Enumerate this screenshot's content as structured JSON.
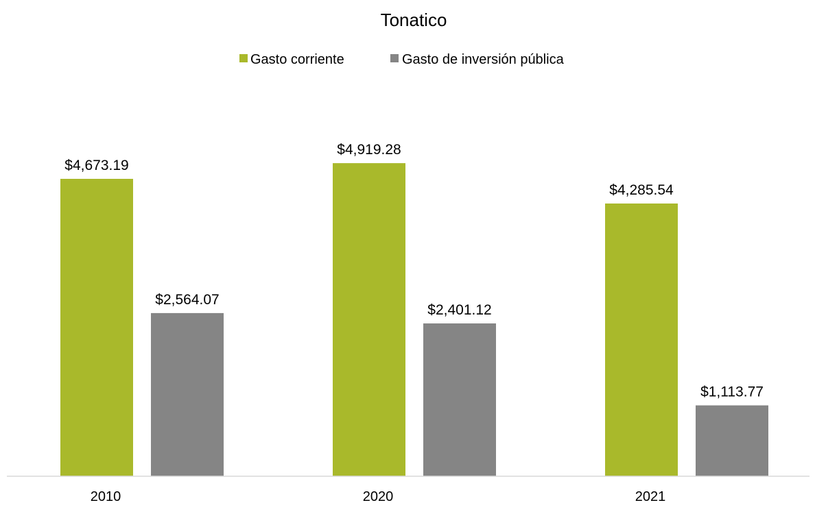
{
  "chart_data": {
    "type": "bar",
    "title": "Tonatico",
    "categories": [
      "2010",
      "2020",
      "2021"
    ],
    "series": [
      {
        "name": "Gasto corriente",
        "color": "#a9b92b",
        "values": [
          4673.19,
          4919.28,
          4285.54
        ],
        "labels": [
          "$4,673.19",
          "$4,919.28",
          "$4,285.54"
        ]
      },
      {
        "name": "Gasto de inversión pública",
        "color": "#858585",
        "values": [
          2564.07,
          2401.12,
          1113.77
        ],
        "labels": [
          "$2,564.07",
          "$2,401.12",
          "$1,113.77"
        ]
      }
    ],
    "ylim": [
      0,
      5500
    ],
    "xlabel": "",
    "ylabel": "",
    "legend_position": "top-center",
    "grid": false,
    "axis_color": "#d9d9d9"
  }
}
